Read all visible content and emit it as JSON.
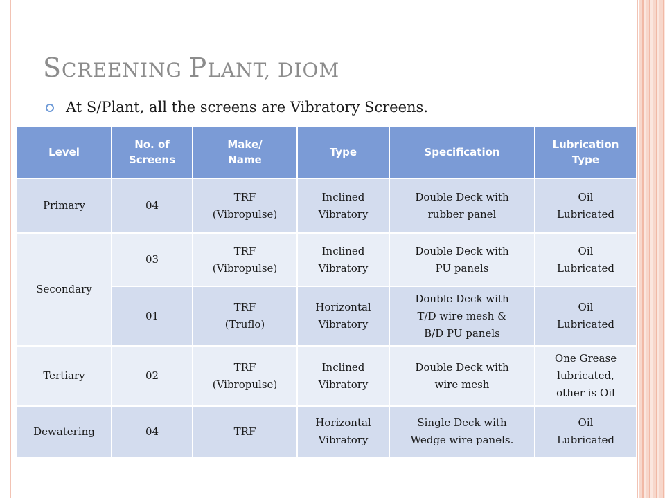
{
  "slide": {
    "title_lead_1": "S",
    "title_rest_1": "CREENING ",
    "title_lead_2": "P",
    "title_rest_2": "LANT, DIOM",
    "bullet_text": "At S/Plant, all the screens are Vibratory Screens."
  },
  "table": {
    "headers": [
      [
        "Level"
      ],
      [
        "No. of",
        "Screens"
      ],
      [
        "Make/",
        "Name"
      ],
      [
        "Type"
      ],
      [
        "Specification"
      ],
      [
        "Lubrication",
        "Type"
      ]
    ],
    "rows": [
      {
        "level": "Primary",
        "count": "04",
        "make": [
          "TRF",
          "(Vibropulse)"
        ],
        "type": [
          "Inclined",
          "Vibratory"
        ],
        "spec": [
          "Double Deck  with",
          "rubber panel"
        ],
        "lube": [
          "Oil",
          "Lubricated"
        ]
      },
      {
        "level": "Secondary",
        "count": "03",
        "make": [
          "TRF",
          "(Vibropulse)"
        ],
        "type": [
          "Inclined",
          "Vibratory"
        ],
        "spec": [
          "Double Deck  with",
          "PU panels"
        ],
        "lube": [
          "Oil",
          "Lubricated"
        ]
      },
      {
        "count": "01",
        "make": [
          "TRF",
          "(Truflo)"
        ],
        "type": [
          "Horizontal",
          "Vibratory"
        ],
        "spec": [
          "Double Deck  with",
          "T/D wire  mesh &",
          "B/D PU panels"
        ],
        "lube": [
          "Oil",
          "Lubricated"
        ]
      },
      {
        "level": "Tertiary",
        "count": "02",
        "make": [
          "TRF",
          "(Vibropulse)"
        ],
        "type": [
          "Inclined",
          "Vibratory"
        ],
        "spec": [
          "Double Deck  with",
          "wire mesh"
        ],
        "lube": [
          "One Grease",
          "lubricated,",
          "other is Oil"
        ]
      },
      {
        "level": "Dewatering",
        "count": "04",
        "make": [
          "TRF"
        ],
        "type": [
          "Horizontal",
          "Vibratory"
        ],
        "spec": [
          "Single Deck with",
          "Wedge wire panels."
        ],
        "lube": [
          "Oil",
          "Lubricated"
        ]
      }
    ]
  }
}
